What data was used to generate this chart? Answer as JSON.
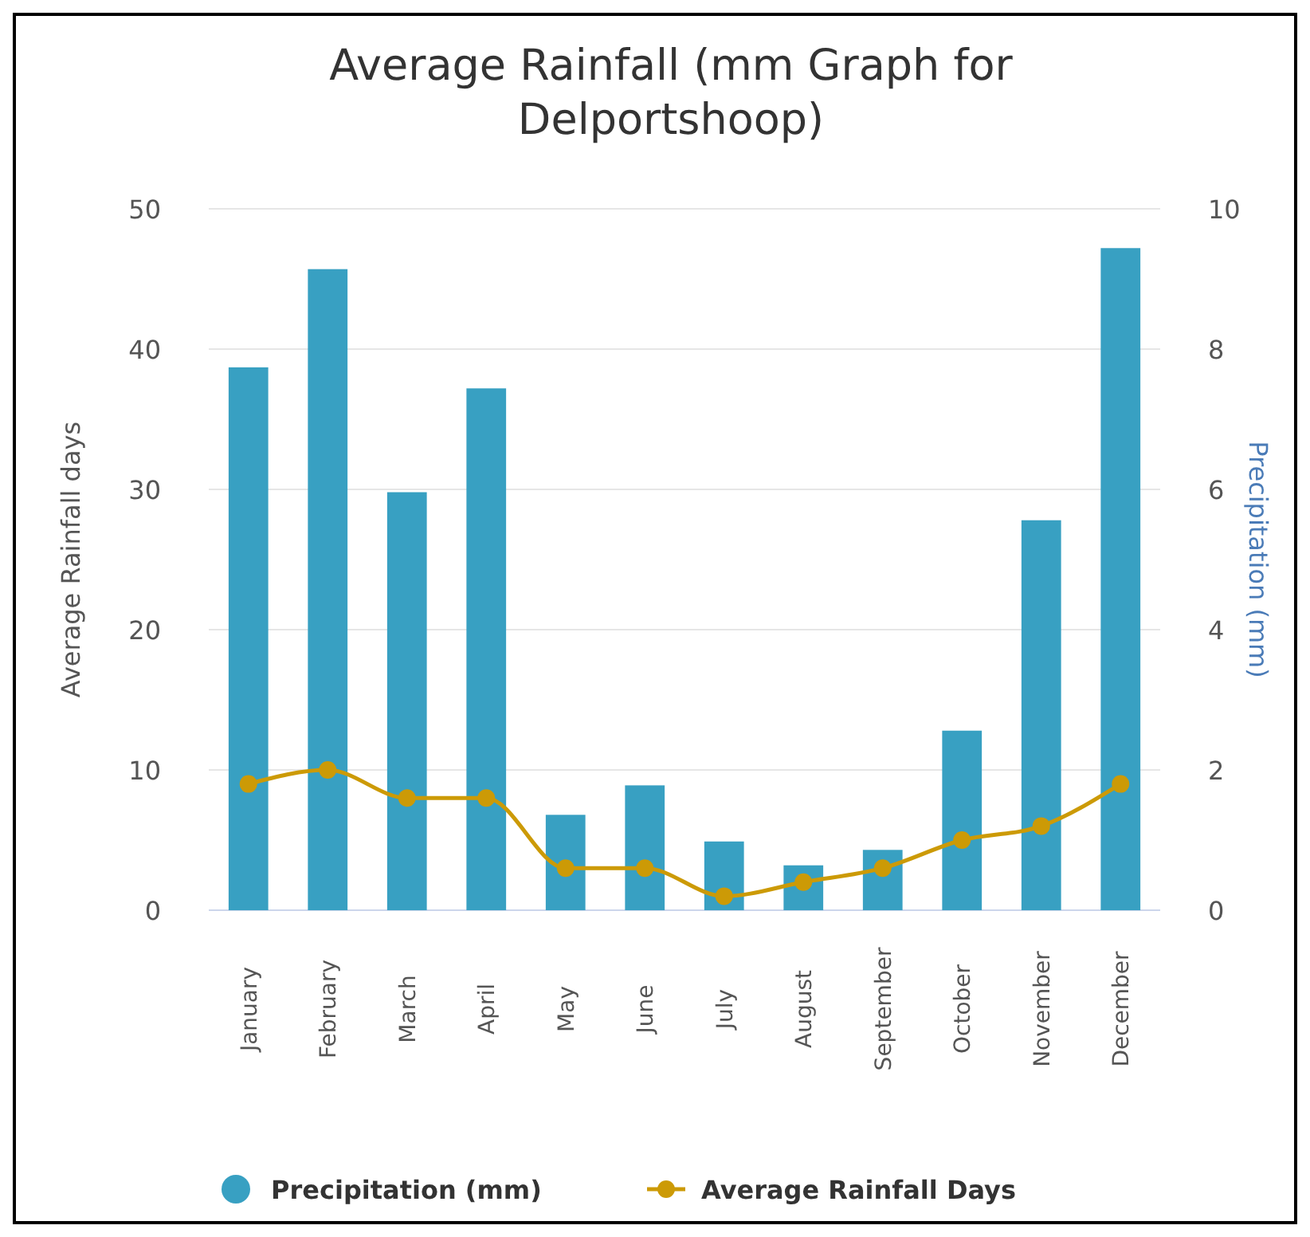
{
  "chart_data": {
    "type": "bar",
    "title": "Average Rainfall (mm Graph for Delportshoop)",
    "ylabel": "Average Rainfall days",
    "y2label": "Precipitation (mm)",
    "categories": [
      "January",
      "February",
      "March",
      "April",
      "May",
      "June",
      "July",
      "August",
      "September",
      "October",
      "November",
      "December"
    ],
    "series": [
      {
        "name": "Precipitation (mm)",
        "color": "#38a0c2",
        "values": [
          38.7,
          45.7,
          29.8,
          37.2,
          6.8,
          8.9,
          4.9,
          3.2,
          4.3,
          12.8,
          27.8,
          47.2
        ]
      },
      {
        "name": "Average Rainfall Days",
        "type": "line",
        "axis": "y2",
        "color": "#cc9a06",
        "marker": "circle",
        "values": [
          1.8,
          2.0,
          1.6,
          1.6,
          0.6,
          0.6,
          0.2,
          0.4,
          0.6,
          1.0,
          1.2,
          1.8
        ]
      }
    ],
    "ylim": [
      0,
      50
    ],
    "yticks": [
      0,
      10,
      20,
      30,
      40,
      50
    ],
    "y2lim": [
      0,
      10
    ],
    "y2ticks": [
      0,
      2,
      4,
      6,
      8,
      10
    ],
    "grid": "y",
    "legend": "bottom"
  }
}
